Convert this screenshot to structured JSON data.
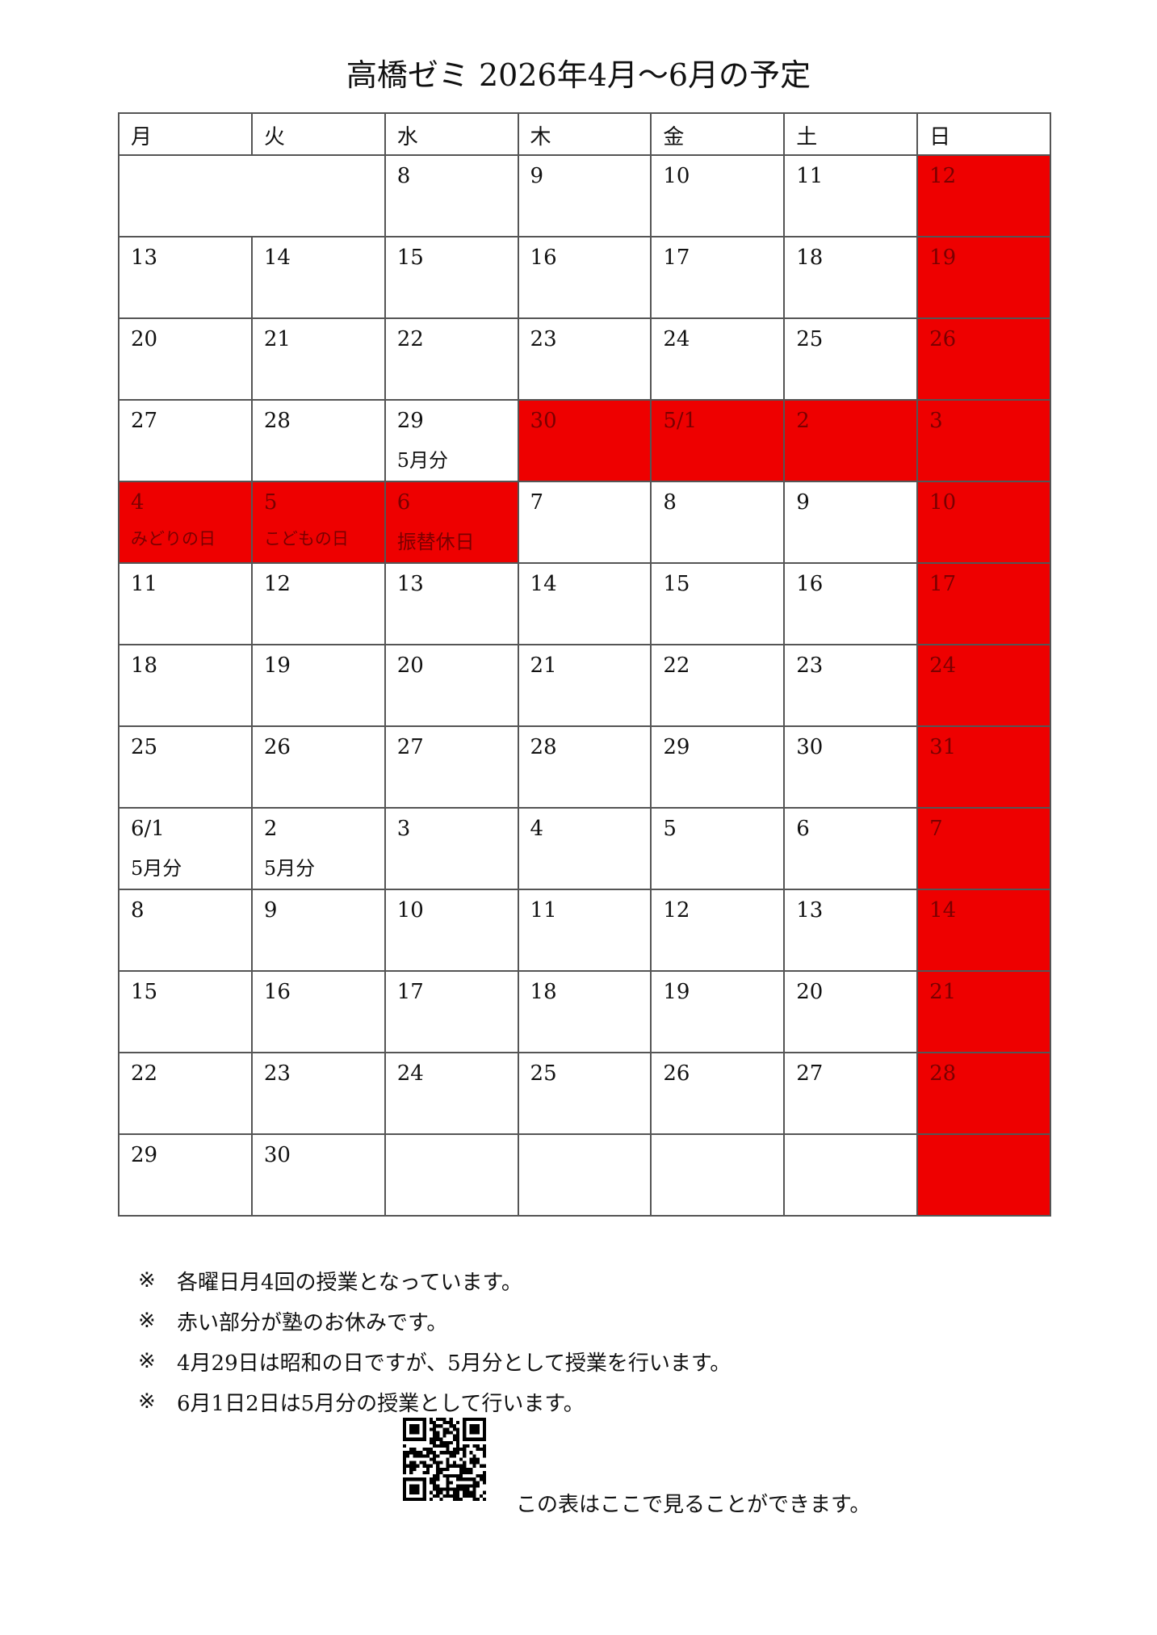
{
  "title": "高橋ゼミ 2026年4月〜6月の予定",
  "colors": {
    "holiday": "#ee0000",
    "border": "#555555"
  },
  "weekdays": [
    "月",
    "火",
    "水",
    "木",
    "金",
    "土",
    "日"
  ],
  "rows": [
    [
      {
        "text": "",
        "span": 2
      },
      {
        "text": "8"
      },
      {
        "text": "9"
      },
      {
        "text": "10"
      },
      {
        "text": "11"
      },
      {
        "text": "12",
        "holiday": true
      }
    ],
    [
      {
        "text": "13"
      },
      {
        "text": "14"
      },
      {
        "text": "15"
      },
      {
        "text": "16"
      },
      {
        "text": "17"
      },
      {
        "text": "18"
      },
      {
        "text": "19",
        "holiday": true
      }
    ],
    [
      {
        "text": "20"
      },
      {
        "text": "21"
      },
      {
        "text": "22"
      },
      {
        "text": "23"
      },
      {
        "text": "24"
      },
      {
        "text": "25"
      },
      {
        "text": "26",
        "holiday": true
      }
    ],
    [
      {
        "text": "27"
      },
      {
        "text": "28"
      },
      {
        "text": "29",
        "note": "5月分"
      },
      {
        "text": "30",
        "holiday": true
      },
      {
        "text": "5/1",
        "holiday": true
      },
      {
        "text": "2",
        "holiday": true
      },
      {
        "text": "3",
        "holiday": true
      }
    ],
    [
      {
        "text": "4",
        "note": "みどりの日",
        "holiday": true,
        "small": true
      },
      {
        "text": "5",
        "note": "こどもの日",
        "holiday": true,
        "small": true
      },
      {
        "text": "6",
        "note": "振替休日",
        "holiday": true
      },
      {
        "text": "7"
      },
      {
        "text": "8"
      },
      {
        "text": "9"
      },
      {
        "text": "10",
        "holiday": true
      }
    ],
    [
      {
        "text": "11"
      },
      {
        "text": "12"
      },
      {
        "text": "13"
      },
      {
        "text": "14"
      },
      {
        "text": "15"
      },
      {
        "text": "16"
      },
      {
        "text": "17",
        "holiday": true
      }
    ],
    [
      {
        "text": "18"
      },
      {
        "text": "19"
      },
      {
        "text": "20"
      },
      {
        "text": "21"
      },
      {
        "text": "22"
      },
      {
        "text": "23"
      },
      {
        "text": "24",
        "holiday": true
      }
    ],
    [
      {
        "text": "25"
      },
      {
        "text": "26"
      },
      {
        "text": "27"
      },
      {
        "text": "28"
      },
      {
        "text": "29"
      },
      {
        "text": "30"
      },
      {
        "text": "31",
        "holiday": true
      }
    ],
    [
      {
        "text": "6/1",
        "note": "5月分"
      },
      {
        "text": "2",
        "note": "5月分"
      },
      {
        "text": "3"
      },
      {
        "text": "4"
      },
      {
        "text": "5"
      },
      {
        "text": "6"
      },
      {
        "text": "7",
        "holiday": true
      }
    ],
    [
      {
        "text": "8"
      },
      {
        "text": "9"
      },
      {
        "text": "10"
      },
      {
        "text": "11"
      },
      {
        "text": "12"
      },
      {
        "text": "13"
      },
      {
        "text": "14",
        "holiday": true
      }
    ],
    [
      {
        "text": "15"
      },
      {
        "text": "16"
      },
      {
        "text": "17"
      },
      {
        "text": "18"
      },
      {
        "text": "19"
      },
      {
        "text": "20"
      },
      {
        "text": "21",
        "holiday": true
      }
    ],
    [
      {
        "text": "22"
      },
      {
        "text": "23"
      },
      {
        "text": "24"
      },
      {
        "text": "25"
      },
      {
        "text": "26"
      },
      {
        "text": "27"
      },
      {
        "text": "28",
        "holiday": true
      }
    ],
    [
      {
        "text": "29"
      },
      {
        "text": "30"
      },
      {
        "text": ""
      },
      {
        "text": ""
      },
      {
        "text": ""
      },
      {
        "text": ""
      },
      {
        "text": "",
        "holiday": true
      }
    ]
  ],
  "notes": {
    "mark": "※",
    "items": [
      "各曜日月4回の授業となっています。",
      "赤い部分が塾のお休みです。",
      "4月29日は昭和の日ですが、5月分として授業を行います。",
      "6月1日2日は5月分の授業として行います。"
    ]
  },
  "qr_caption": "この表はここで見ることができます。"
}
